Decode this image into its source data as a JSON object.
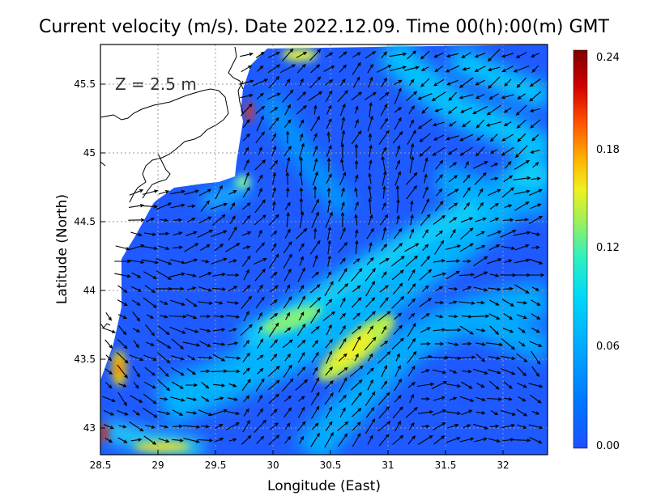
{
  "title": "Current velocity (m/s). Date 2022.12.09. Time 00(h):00(m) GMT",
  "depth_label": "Z  =  2.5 m",
  "xlabel": "Longitude (East)",
  "ylabel": "Latitude (North)",
  "x_ticks": [
    "28.5",
    "29",
    "29.5",
    "30",
    "30.5",
    "31",
    "31.5",
    "32"
  ],
  "y_ticks": [
    "43",
    "43.5",
    "44",
    "44.5",
    "45",
    "45.5"
  ],
  "colorbar": {
    "ticks": [
      "0.00",
      "0.06",
      "0.12",
      "0.18",
      "0.24"
    ],
    "colors": [
      "#1e50ff",
      "#00a0ff",
      "#00e0f0",
      "#50f0a0",
      "#c8f040",
      "#ffe000",
      "#ff9000",
      "#ff3000",
      "#c00000",
      "#800000"
    ]
  },
  "chart_data": {
    "type": "heatmap",
    "title": "Current velocity (m/s). Date 2022.12.09. Time 00(h):00(m) GMT",
    "xlabel": "Longitude (East)",
    "ylabel": "Latitude (North)",
    "xlim": [
      28.5,
      32.4
    ],
    "ylim": [
      42.8,
      45.8
    ],
    "color_range": [
      0,
      0.24
    ],
    "grid": true,
    "hotspots": [
      {
        "lon": 30.65,
        "lat": 43.55,
        "speed": 0.15
      },
      {
        "lon": 30.2,
        "lat": 43.9,
        "speed": 0.12
      },
      {
        "lon": 28.65,
        "lat": 43.45,
        "speed": 0.17
      },
      {
        "lon": 29.8,
        "lat": 45.3,
        "speed": 0.22
      },
      {
        "lon": 28.55,
        "lat": 42.95,
        "speed": 0.21
      },
      {
        "lon": 29.9,
        "lat": 45.7,
        "speed": 0.14
      }
    ]
  }
}
